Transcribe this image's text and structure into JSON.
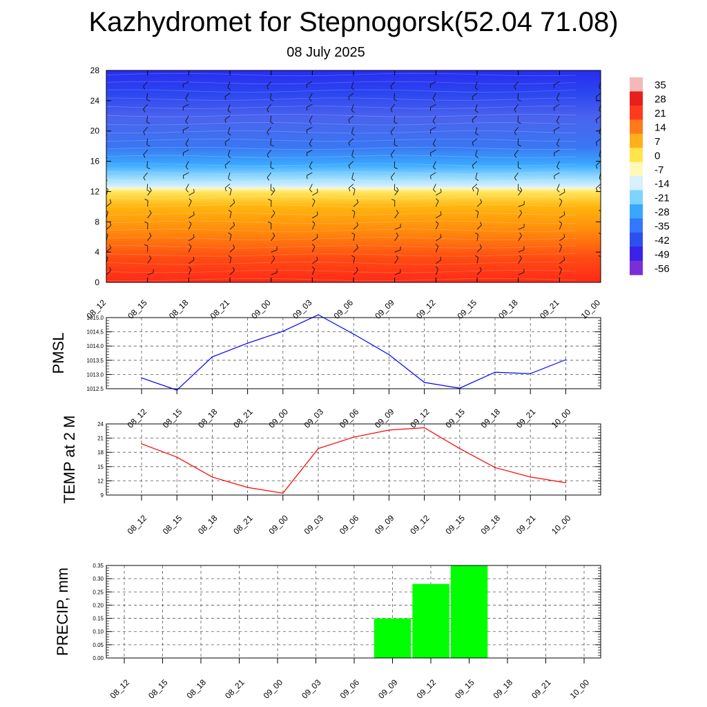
{
  "title": "Kazhydromet for Stepnogorsk(52.04 71.08)",
  "subtitle": "08 July 2025",
  "time_labels": [
    "08_12",
    "08_15",
    "08_18",
    "08_21",
    "09_00",
    "09_03",
    "09_06",
    "09_09",
    "09_12",
    "09_15",
    "09_18",
    "09_21",
    "10_00"
  ],
  "colorbar": {
    "labels": [
      "35",
      "28",
      "21",
      "14",
      "7",
      "0",
      "-7",
      "-14",
      "-21",
      "-28",
      "-35",
      "-42",
      "-49",
      "-56"
    ],
    "colors": [
      "#f5b8b8",
      "#e8201c",
      "#ff3a1e",
      "#ff7a1a",
      "#ffb01c",
      "#ffe44a",
      "#fff9b8",
      "#d6f0ff",
      "#7fd3ff",
      "#39a6ff",
      "#3478ff",
      "#2e4ff0",
      "#3a22e8",
      "#7a2ed8"
    ]
  },
  "chart_data": [
    {
      "type": "heatmap",
      "title": "",
      "xlabel": "",
      "ylabel": "",
      "x": [
        "08_12",
        "08_15",
        "08_18",
        "08_21",
        "09_00",
        "09_03",
        "09_06",
        "09_09",
        "09_12",
        "09_15",
        "09_18",
        "09_21",
        "10_00"
      ],
      "yticks": [
        0,
        4,
        8,
        12,
        16,
        20,
        24,
        28
      ],
      "ylim": [
        0,
        28
      ],
      "zlim": [
        -56,
        35
      ],
      "freezing_level": 12.5,
      "overlay": "wind barbs"
    },
    {
      "type": "line",
      "ylabel": "PMSL",
      "x": [
        "08_12",
        "08_15",
        "08_18",
        "08_21",
        "09_00",
        "09_03",
        "09_06",
        "09_09",
        "09_12",
        "09_15",
        "09_18",
        "09_21",
        "10_00"
      ],
      "yticks": [
        "1012.5",
        "1013.0",
        "1013.5",
        "1014.0",
        "1014.5",
        "1015.0"
      ],
      "ylim": [
        1012.5,
        1015.0
      ],
      "values": [
        1012.88,
        1012.45,
        1013.62,
        1014.1,
        1014.52,
        1015.1,
        1014.42,
        1013.7,
        1012.72,
        1012.52,
        1013.08,
        1013.03,
        1013.52
      ],
      "color": "#0000ff",
      "grid": true
    },
    {
      "type": "line",
      "ylabel": "TEMP at 2 M",
      "x": [
        "08_12",
        "08_15",
        "08_18",
        "08_21",
        "09_00",
        "09_03",
        "09_06",
        "09_09",
        "09_12",
        "09_15",
        "09_18",
        "09_21",
        "10_00"
      ],
      "yticks": [
        "9",
        "12",
        "15",
        "18",
        "21",
        "24"
      ],
      "ylim": [
        9,
        24
      ],
      "values": [
        19.8,
        17.0,
        12.8,
        10.6,
        9.4,
        18.8,
        21.2,
        22.7,
        23.2,
        18.8,
        14.8,
        12.8,
        11.6
      ],
      "color": "#ff0000",
      "grid": true
    },
    {
      "type": "bar",
      "ylabel": "PRECIP, mm",
      "categories": [
        "08_12",
        "08_15",
        "08_18",
        "08_21",
        "09_00",
        "09_03",
        "09_06",
        "09_09",
        "09_12",
        "09_15",
        "09_18",
        "09_21",
        "10_00"
      ],
      "yticks": [
        "0.00",
        "0.05",
        "0.10",
        "0.15",
        "0.20",
        "0.25",
        "0.30",
        "0.35"
      ],
      "ylim": [
        0,
        0.35
      ],
      "values": [
        0,
        0,
        0,
        0,
        0,
        0,
        0,
        0.15,
        0.28,
        0.35,
        0,
        0,
        0
      ],
      "color": "#00ff00",
      "grid": true
    }
  ]
}
